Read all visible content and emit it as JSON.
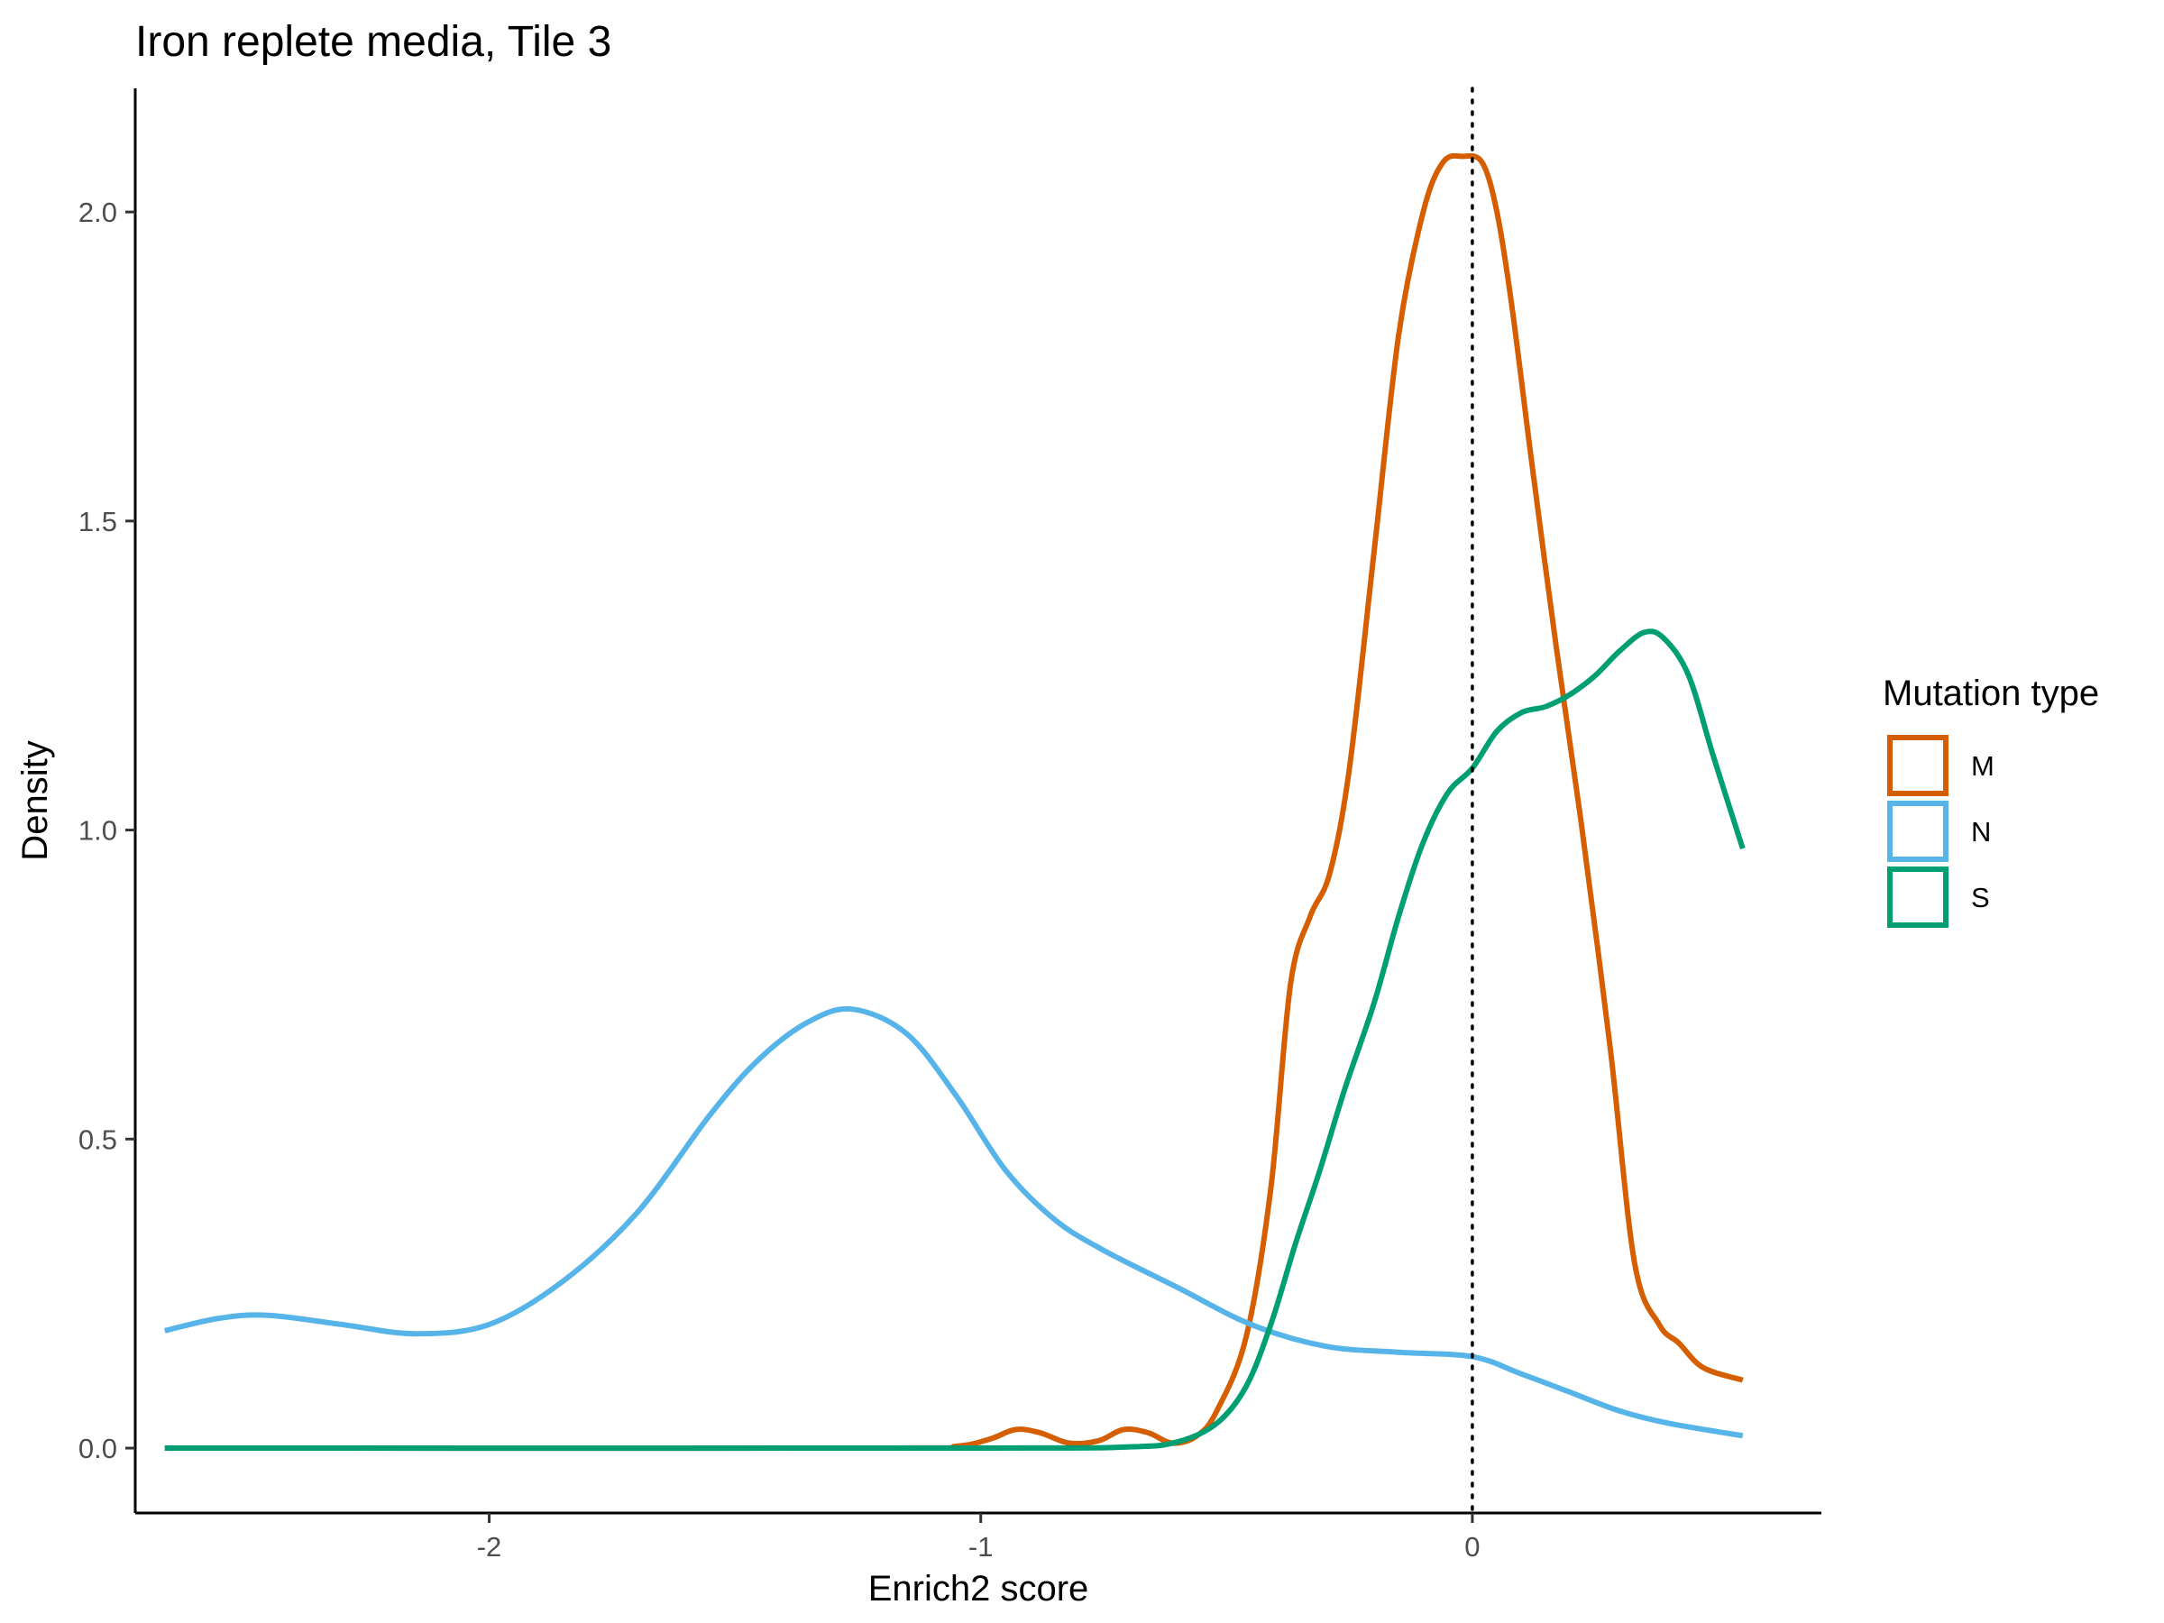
{
  "chart_data": {
    "type": "line",
    "subtype": "density",
    "title": "Iron replete media, Tile 3",
    "xlabel": "Enrich2 score",
    "ylabel": "Density",
    "xlim": [
      -2.72,
      0.71
    ],
    "ylim": [
      -0.105,
      2.2
    ],
    "x_ticks": [
      -2,
      -1,
      0
    ],
    "x_tick_labels": [
      "-2",
      "-1",
      "0"
    ],
    "y_ticks": [
      0.0,
      0.5,
      1.0,
      1.5,
      2.0
    ],
    "y_tick_labels": [
      "0.0",
      "0.5",
      "1.0",
      "1.5",
      "2.0"
    ],
    "reference_line": {
      "x": 0,
      "style": "dotted",
      "color": "#000000"
    },
    "grid": false,
    "legend": {
      "title": "Mutation type",
      "position": "right",
      "entries": [
        "M",
        "N",
        "S"
      ]
    },
    "series": [
      {
        "name": "M",
        "color": "#D55E00",
        "x": [
          -2.55,
          -1.2,
          -1.05,
          -0.98,
          -0.93,
          -0.88,
          -0.82,
          -0.76,
          -0.71,
          -0.66,
          -0.61,
          -0.56,
          -0.52,
          -0.46,
          -0.41,
          -0.37,
          -0.33,
          -0.29,
          -0.25,
          -0.2,
          -0.15,
          -0.1,
          -0.06,
          -0.02,
          0.02,
          0.05,
          0.08,
          0.12,
          0.17,
          0.22,
          0.28,
          0.33,
          0.38,
          0.42,
          0.47,
          0.55
        ],
        "y": [
          0.0,
          0.0,
          0.003,
          0.015,
          0.03,
          0.025,
          0.008,
          0.012,
          0.03,
          0.025,
          0.008,
          0.02,
          0.06,
          0.18,
          0.42,
          0.75,
          0.86,
          0.93,
          1.1,
          1.45,
          1.8,
          2.0,
          2.08,
          2.09,
          2.08,
          2.0,
          1.85,
          1.6,
          1.3,
          1.02,
          0.65,
          0.3,
          0.2,
          0.17,
          0.13,
          0.11
        ]
      },
      {
        "name": "N",
        "color": "#56B4E9",
        "x": [
          -2.66,
          -2.55,
          -2.45,
          -2.3,
          -2.15,
          -2.0,
          -1.85,
          -1.7,
          -1.55,
          -1.45,
          -1.35,
          -1.26,
          -1.15,
          -1.05,
          -0.95,
          -0.85,
          -0.75,
          -0.6,
          -0.45,
          -0.3,
          -0.15,
          0.0,
          0.1,
          0.2,
          0.3,
          0.4,
          0.55
        ],
        "y": [
          0.19,
          0.21,
          0.215,
          0.2,
          0.185,
          0.2,
          0.27,
          0.38,
          0.54,
          0.63,
          0.69,
          0.71,
          0.67,
          0.57,
          0.45,
          0.37,
          0.32,
          0.26,
          0.2,
          0.165,
          0.155,
          0.148,
          0.12,
          0.09,
          0.06,
          0.04,
          0.02
        ]
      },
      {
        "name": "S",
        "color": "#009E73",
        "x": [
          -2.66,
          -1.0,
          -0.7,
          -0.6,
          -0.52,
          -0.46,
          -0.41,
          -0.36,
          -0.31,
          -0.26,
          -0.2,
          -0.15,
          -0.1,
          -0.05,
          0.0,
          0.05,
          0.1,
          0.15,
          0.2,
          0.25,
          0.3,
          0.35,
          0.39,
          0.44,
          0.49,
          0.55
        ],
        "y": [
          0.0,
          0.0,
          0.002,
          0.01,
          0.04,
          0.1,
          0.2,
          0.33,
          0.45,
          0.58,
          0.72,
          0.86,
          0.98,
          1.06,
          1.1,
          1.16,
          1.19,
          1.2,
          1.22,
          1.25,
          1.29,
          1.32,
          1.31,
          1.25,
          1.12,
          0.97
        ]
      }
    ]
  }
}
